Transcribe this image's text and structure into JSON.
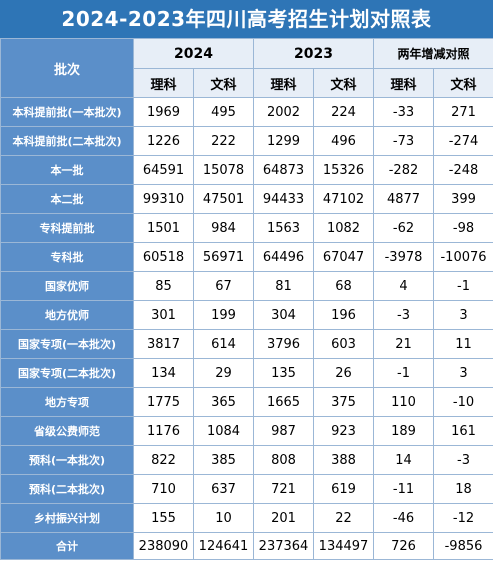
{
  "title": "2024-2023年四川高考招生计划对照表",
  "header": {
    "batch": "批次",
    "year_2024": "2024",
    "year_2023": "2023",
    "diff": "两年增减对照",
    "science": "理科",
    "arts": "文科"
  },
  "rows": [
    {
      "batch": "本科提前批(一本批次)",
      "v": [
        "1969",
        "495",
        "2002",
        "224",
        "-33",
        "271"
      ]
    },
    {
      "batch": "本科提前批(二本批次)",
      "v": [
        "1226",
        "222",
        "1299",
        "496",
        "-73",
        "-274"
      ]
    },
    {
      "batch": "本一批",
      "v": [
        "64591",
        "15078",
        "64873",
        "15326",
        "-282",
        "-248"
      ]
    },
    {
      "batch": "本二批",
      "v": [
        "99310",
        "47501",
        "94433",
        "47102",
        "4877",
        "399"
      ]
    },
    {
      "batch": "专科提前批",
      "v": [
        "1501",
        "984",
        "1563",
        "1082",
        "-62",
        "-98"
      ]
    },
    {
      "batch": "专科批",
      "v": [
        "60518",
        "56971",
        "64496",
        "67047",
        "-3978",
        "-10076"
      ]
    },
    {
      "batch": "国家优师",
      "v": [
        "85",
        "67",
        "81",
        "68",
        "4",
        "-1"
      ]
    },
    {
      "batch": "地方优师",
      "v": [
        "301",
        "199",
        "304",
        "196",
        "-3",
        "3"
      ]
    },
    {
      "batch": "国家专项(一本批次)",
      "v": [
        "3817",
        "614",
        "3796",
        "603",
        "21",
        "11"
      ]
    },
    {
      "batch": "国家专项(二本批次)",
      "v": [
        "134",
        "29",
        "135",
        "26",
        "-1",
        "3"
      ]
    },
    {
      "batch": "地方专项",
      "v": [
        "1775",
        "365",
        "1665",
        "375",
        "110",
        "-10"
      ]
    },
    {
      "batch": "省级公费师范",
      "v": [
        "1176",
        "1084",
        "987",
        "923",
        "189",
        "161"
      ]
    },
    {
      "batch": "预科(一本批次)",
      "v": [
        "822",
        "385",
        "808",
        "388",
        "14",
        "-3"
      ]
    },
    {
      "batch": "预科(二本批次)",
      "v": [
        "710",
        "637",
        "721",
        "619",
        "-11",
        "18"
      ]
    },
    {
      "batch": "乡村振兴计划",
      "v": [
        "155",
        "10",
        "201",
        "22",
        "-46",
        "-12"
      ]
    },
    {
      "batch": "合计",
      "v": [
        "238090",
        "124641",
        "237364",
        "134497",
        "726",
        "-9856"
      ]
    }
  ]
}
